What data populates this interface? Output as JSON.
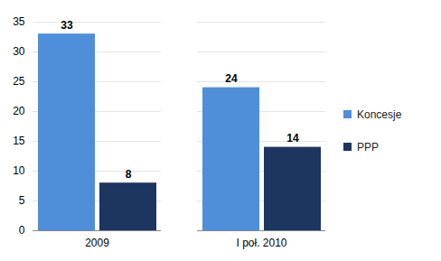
{
  "chart_data": {
    "type": "bar",
    "categories": [
      "2009",
      "I poł. 2010"
    ],
    "series": [
      {
        "name": "Koncesje",
        "color": "#4f8fda",
        "values": [
          33,
          24
        ]
      },
      {
        "name": "PPP",
        "color": "#1c3660",
        "values": [
          8,
          14
        ]
      }
    ],
    "ylim": [
      0,
      35
    ],
    "yticks": [
      0,
      5,
      10,
      15,
      20,
      25,
      30,
      35
    ],
    "grid": true,
    "data_labels": true,
    "legend": "right"
  }
}
